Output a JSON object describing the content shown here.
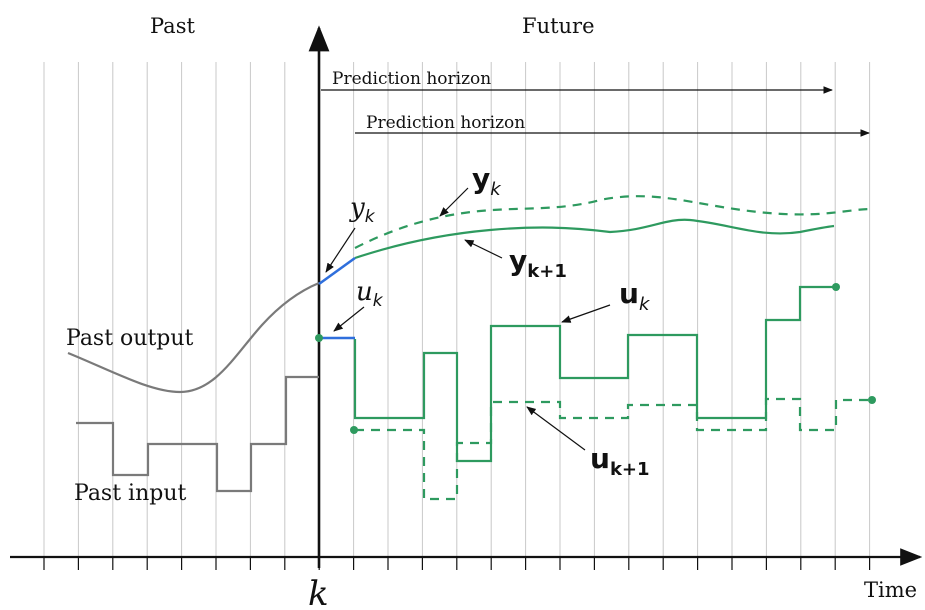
{
  "labels": {
    "past": "Past",
    "future": "Future",
    "past_output": "Past output",
    "past_input": "Past input",
    "time": "Time",
    "k": "k",
    "horizon_1": "Prediction horizon",
    "horizon_2": "Prediction horizon",
    "y_lower": "y",
    "y_lower_sub": "k",
    "u_lower": "u",
    "u_lower_sub": "k",
    "y_bold": "y",
    "y_bold_sub": "k",
    "y_next": "y",
    "y_next_sub": "k+1",
    "u_bold": "u",
    "u_bold_sub": "k",
    "u_next": "u",
    "u_next_sub": "k+1"
  },
  "colors": {
    "prediction": "#2e9a5f",
    "past_signal": "#7a7a7a",
    "current": "#2f6fdc",
    "grid": "#c8c8c8",
    "axis": "#111111"
  }
}
